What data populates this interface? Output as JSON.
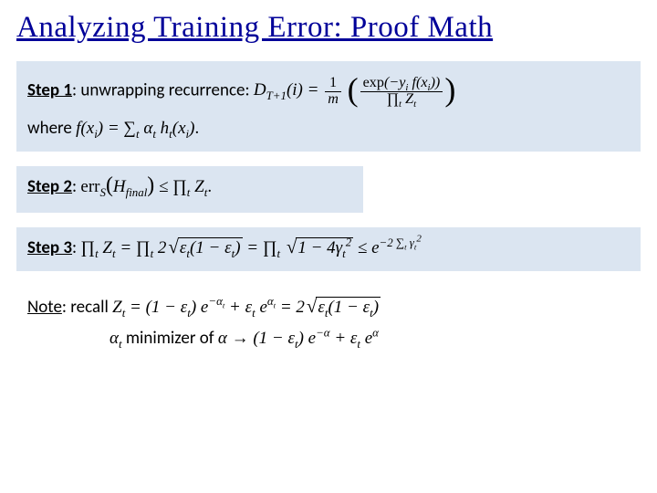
{
  "title": "Analyzing Training Error: Proof Math",
  "colors": {
    "title": "#000099",
    "block_bg": "#dbe5f1",
    "page_bg": "#ffffff",
    "text": "#000000"
  },
  "step1": {
    "label": "Step 1",
    "lead": ": unwrapping recurrence: ",
    "lhs": "D_{T+1}(i)",
    "rhs_fraction_outer": "1/m",
    "rhs_paren_num": "exp(-y_i f(x_i))",
    "rhs_paren_den": "\\prod_t Z_t",
    "where_label": "where ",
    "where_eq": "f(x_i) = \\sum_t \\alpha_t h_t(x_i)."
  },
  "step2": {
    "label": "Step 2",
    "text": ": err_S(H_final) ≤ \\prod_t Z_t."
  },
  "step3": {
    "label": "Step 3",
    "text": ": \\prod_t Z_t = \\prod_t 2\\sqrt{\\epsilon_t(1-\\epsilon_t)} = \\prod_t \\sqrt{1-4\\gamma_t^2} ≤ e^{-2\\sum_t \\gamma_t^2}"
  },
  "note": {
    "label": "Note",
    "lead": ": recall ",
    "line1": "Z_t = (1-\\epsilon_t) e^{-\\alpha_t} + \\epsilon_t e^{\\alpha_t} = 2\\sqrt{\\epsilon_t(1-\\epsilon_t)}",
    "line2_lead": "\\alpha_t minimizer of ",
    "line2_eq": "\\alpha \\to (1-\\epsilon_t) e^{-\\alpha} + \\epsilon_t e^{\\alpha}"
  }
}
